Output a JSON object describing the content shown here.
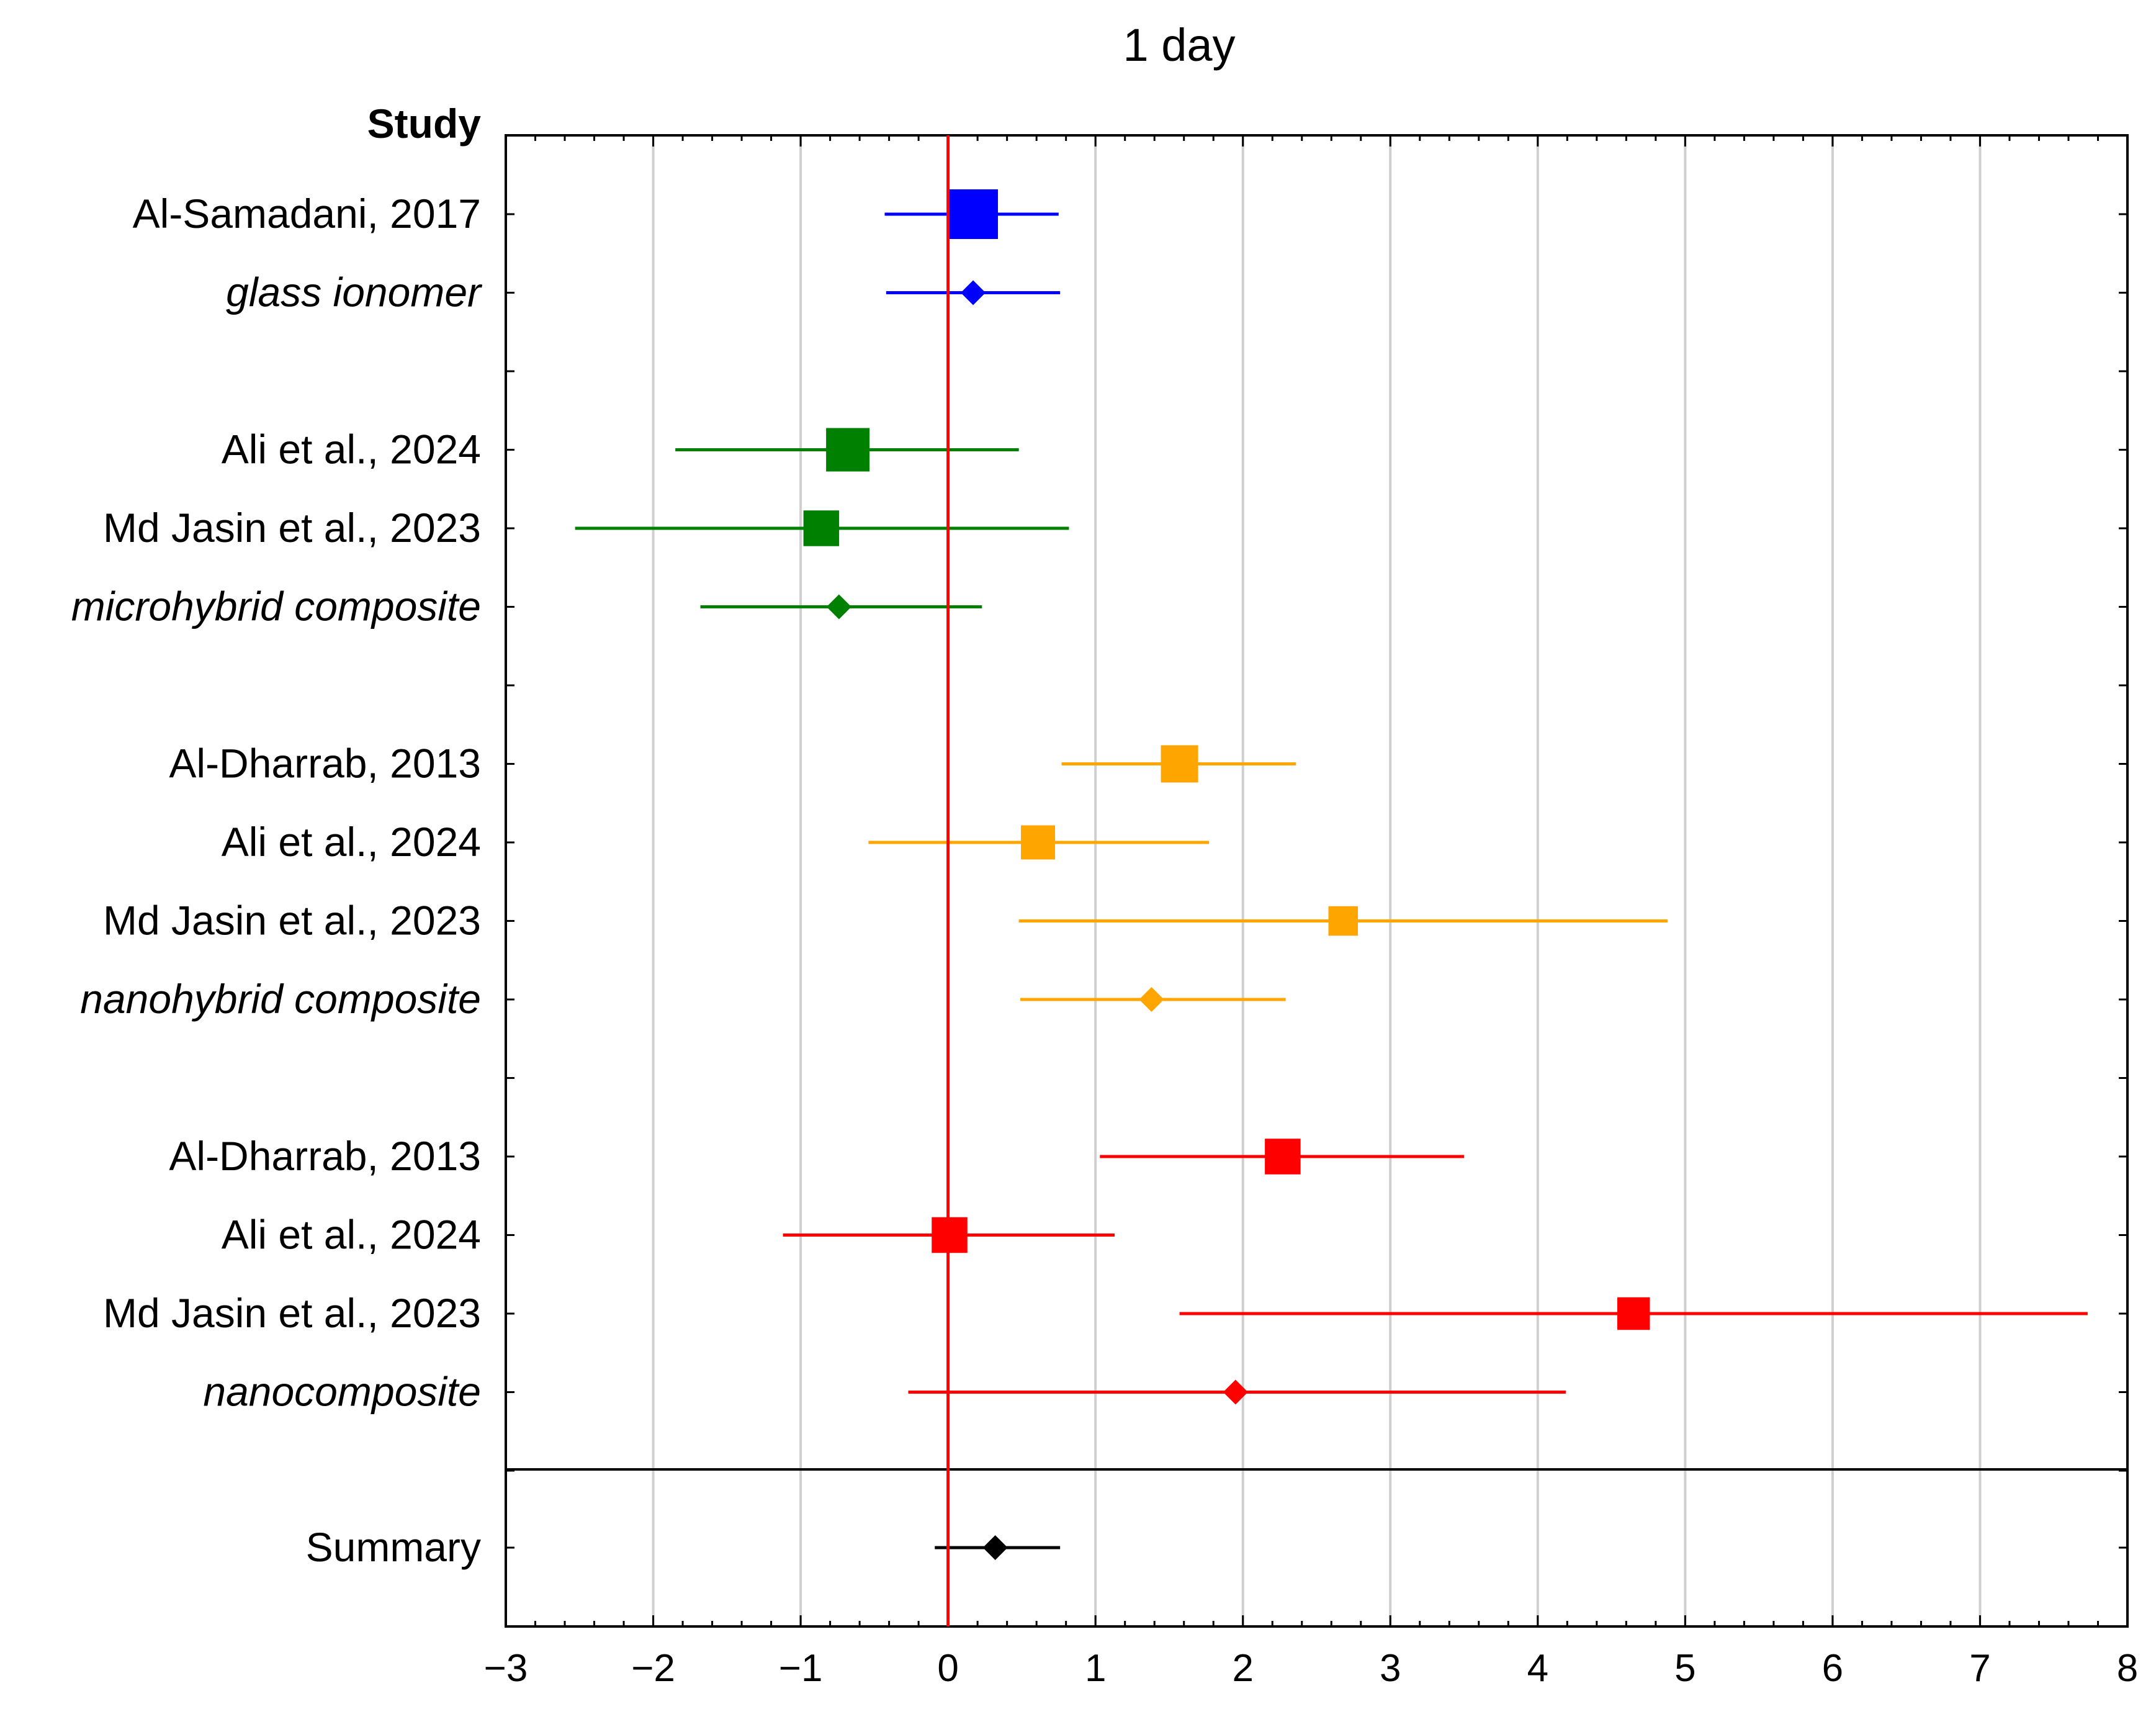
{
  "chart_data": {
    "type": "forest",
    "title": "1 day",
    "column_header": "Study",
    "x_ticks": [
      -3,
      -2,
      -1,
      0,
      1,
      2,
      3,
      4,
      5,
      6,
      7,
      8
    ],
    "x_tick_labels": [
      "−3",
      "−2",
      "−1",
      "0",
      "1",
      "2",
      "3",
      "4",
      "5",
      "6",
      "7",
      "8"
    ],
    "xlim": [
      -3,
      8
    ],
    "reference_line": 0,
    "grid": "vertical",
    "rows": [
      {
        "label": "Al-Samadani, 2017",
        "kind": "study",
        "estimate": 0.17,
        "lower": -0.43,
        "upper": 0.75,
        "color": "#0000ff",
        "weight": 1.0
      },
      {
        "label": "glass ionomer",
        "kind": "subtotal",
        "estimate": 0.17,
        "lower": -0.42,
        "upper": 0.76,
        "color": "#0000ff"
      },
      {
        "label": "",
        "kind": "blank"
      },
      {
        "label": "Ali et al., 2024",
        "kind": "study",
        "estimate": -0.68,
        "lower": -1.85,
        "upper": 0.48,
        "color": "#008000",
        "weight": 0.8
      },
      {
        "label": "Md Jasin et al., 2023",
        "kind": "study",
        "estimate": -0.86,
        "lower": -2.53,
        "upper": 0.82,
        "color": "#008000",
        "weight": 0.55
      },
      {
        "label": "microhybrid composite",
        "kind": "subtotal",
        "estimate": -0.74,
        "lower": -1.68,
        "upper": 0.23,
        "color": "#008000"
      },
      {
        "label": "",
        "kind": "blank"
      },
      {
        "label": "Al-Dharrab, 2013",
        "kind": "study",
        "estimate": 1.57,
        "lower": 0.77,
        "upper": 2.36,
        "color": "#ffa500",
        "weight": 0.6
      },
      {
        "label": "Ali et al., 2024",
        "kind": "study",
        "estimate": 0.61,
        "lower": -0.54,
        "upper": 1.77,
        "color": "#ffa500",
        "weight": 0.5
      },
      {
        "label": "Md Jasin et al., 2023",
        "kind": "study",
        "estimate": 2.68,
        "lower": 0.48,
        "upper": 4.88,
        "color": "#ffa500",
        "weight": 0.35
      },
      {
        "label": "nanohybrid composite",
        "kind": "subtotal",
        "estimate": 1.38,
        "lower": 0.49,
        "upper": 2.29,
        "color": "#ffa500"
      },
      {
        "label": "",
        "kind": "blank"
      },
      {
        "label": "Al-Dharrab, 2013",
        "kind": "study",
        "estimate": 2.27,
        "lower": 1.03,
        "upper": 3.5,
        "color": "#ff0000",
        "weight": 0.55
      },
      {
        "label": "Ali et al., 2024",
        "kind": "study",
        "estimate": 0.01,
        "lower": -1.12,
        "upper": 1.13,
        "color": "#ff0000",
        "weight": 0.55
      },
      {
        "label": "Md Jasin et al., 2023",
        "kind": "study",
        "estimate": 4.65,
        "lower": 1.57,
        "upper": 7.73,
        "color": "#ff0000",
        "weight": 0.45
      },
      {
        "label": "nanocomposite",
        "kind": "subtotal",
        "estimate": 1.95,
        "lower": -0.27,
        "upper": 4.19,
        "color": "#ff0000"
      },
      {
        "label": "",
        "kind": "blank"
      },
      {
        "label": "Summary",
        "kind": "summary",
        "estimate": 0.32,
        "lower": -0.09,
        "upper": 0.76,
        "color": "#000000"
      }
    ]
  }
}
